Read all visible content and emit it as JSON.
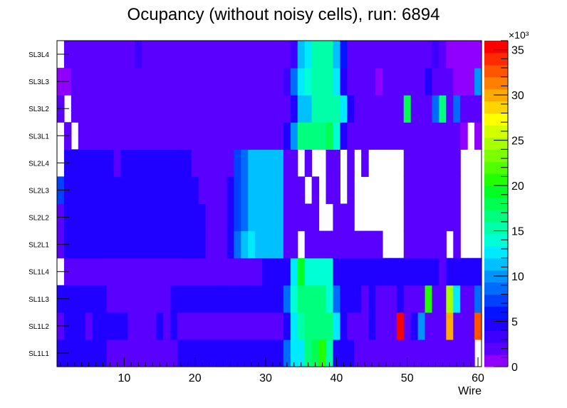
{
  "title": "Ocupancy (without noisy cells), run: 6894",
  "chart_data": {
    "type": "heatmap",
    "title": "Ocupancy (without noisy cells), run: 6894",
    "xlabel": "Wire",
    "ylabel": "",
    "xlim": [
      0.5,
      60.5
    ],
    "x_ticks": [
      10,
      20,
      30,
      40,
      50,
      60
    ],
    "y_categories": [
      "SL1L1",
      "SL1L2",
      "SL1L3",
      "SL1L4",
      "SL2L1",
      "SL2L2",
      "SL2L3",
      "SL2L4",
      "SL3L1",
      "SL3L2",
      "SL3L3",
      "SL3L4"
    ],
    "z_scale_label": "×10³",
    "z_range": [
      0,
      36
    ],
    "z_ticks": [
      0,
      5,
      10,
      15,
      20,
      25,
      30,
      35
    ],
    "grid": false,
    "cell_value_units": "thousands",
    "rows": {
      "SL3L4": [
        0,
        2,
        2,
        2,
        2,
        2,
        2,
        2,
        2,
        2,
        2,
        3,
        2,
        2,
        2,
        2,
        2,
        2,
        2,
        2,
        2,
        2,
        2,
        2,
        2,
        2,
        2,
        2,
        2,
        2,
        2,
        2,
        2,
        3,
        11,
        13,
        15,
        15,
        15,
        11,
        6,
        2,
        2,
        2,
        2,
        2,
        2,
        2,
        2,
        2,
        2,
        2,
        2,
        3,
        2,
        1,
        1,
        1,
        1,
        1
      ],
      "SL3L3": [
        1,
        1,
        2,
        2,
        2,
        2,
        2,
        2,
        2,
        2,
        2,
        2,
        2,
        2,
        2,
        2,
        2,
        2,
        2,
        2,
        2,
        2,
        2,
        2,
        2,
        2,
        2,
        2,
        2,
        2,
        2,
        2,
        3,
        8,
        12,
        14,
        15,
        15,
        15,
        12,
        5,
        2,
        2,
        2,
        2,
        1,
        2,
        2,
        2,
        2,
        2,
        2,
        4,
        2,
        2,
        2,
        1,
        1,
        1,
        10
      ],
      "SL3L2": [
        2,
        0,
        2,
        2,
        2,
        2,
        2,
        2,
        2,
        2,
        2,
        2,
        2,
        2,
        2,
        2,
        2,
        2,
        2,
        2,
        2,
        2,
        2,
        2,
        2,
        2,
        2,
        2,
        2,
        2,
        2,
        2,
        2,
        5,
        11,
        11,
        15,
        15,
        15,
        15,
        12,
        4,
        2,
        2,
        2,
        2,
        2,
        2,
        2,
        18,
        2,
        2,
        2,
        8,
        16,
        2,
        9,
        2,
        2,
        2
      ],
      "SL3L1": [
        0,
        2,
        0,
        2,
        2,
        2,
        2,
        2,
        2,
        2,
        2,
        2,
        2,
        2,
        2,
        2,
        2,
        2,
        2,
        2,
        2,
        2,
        2,
        2,
        2,
        2,
        2,
        2,
        2,
        2,
        2,
        2,
        4,
        10,
        16,
        16,
        16,
        17,
        18,
        14,
        4,
        2,
        2,
        2,
        2,
        2,
        2,
        2,
        2,
        2,
        2,
        2,
        2,
        2,
        2,
        2,
        2,
        1,
        0,
        1
      ],
      "SL2L4": [
        0,
        4,
        4,
        4,
        4,
        4,
        4,
        4,
        2,
        4,
        4,
        4,
        4,
        4,
        4,
        4,
        4,
        4,
        4,
        2,
        2,
        2,
        2,
        2,
        2,
        7,
        9,
        11,
        11,
        11,
        11,
        11,
        2,
        2,
        0,
        2,
        0,
        0,
        2,
        2,
        0,
        2,
        0,
        2,
        0,
        0,
        0,
        0,
        0,
        2,
        2,
        2,
        2,
        2,
        2,
        2,
        2,
        0,
        0,
        0
      ],
      "SL2L3": [
        7,
        4,
        4,
        4,
        4,
        4,
        4,
        4,
        4,
        4,
        4,
        4,
        4,
        4,
        4,
        4,
        4,
        4,
        4,
        4,
        2,
        2,
        2,
        2,
        4,
        7,
        9,
        11,
        11,
        11,
        11,
        11,
        2,
        2,
        2,
        0,
        2,
        0,
        2,
        2,
        0,
        2,
        0,
        0,
        0,
        0,
        0,
        0,
        0,
        2,
        2,
        2,
        2,
        2,
        2,
        2,
        2,
        0,
        0,
        0
      ],
      "SL2L2": [
        2,
        4,
        4,
        4,
        4,
        4,
        4,
        4,
        4,
        4,
        4,
        4,
        4,
        4,
        4,
        4,
        4,
        4,
        4,
        4,
        4,
        2,
        2,
        2,
        4,
        7,
        9,
        11,
        11,
        11,
        11,
        11,
        2,
        2,
        2,
        2,
        2,
        0,
        0,
        2,
        2,
        2,
        0,
        0,
        0,
        0,
        0,
        0,
        0,
        2,
        2,
        2,
        2,
        2,
        2,
        2,
        2,
        0,
        0,
        0
      ],
      "SL2L1": [
        2,
        4,
        4,
        4,
        4,
        4,
        4,
        4,
        4,
        4,
        4,
        4,
        4,
        4,
        4,
        4,
        4,
        4,
        4,
        4,
        4,
        2,
        2,
        2,
        4,
        9,
        11,
        13,
        11,
        11,
        11,
        11,
        2,
        2,
        0,
        2,
        2,
        2,
        2,
        2,
        2,
        2,
        2,
        2,
        2,
        2,
        0,
        0,
        0,
        2,
        2,
        2,
        2,
        2,
        2,
        0,
        2,
        0,
        0,
        0
      ],
      "SL1L4": [
        0,
        2,
        2,
        2,
        2,
        2,
        2,
        2,
        2,
        2,
        2,
        2,
        2,
        2,
        2,
        2,
        2,
        2,
        2,
        2,
        2,
        2,
        2,
        2,
        2,
        2,
        2,
        2,
        2,
        4,
        4,
        4,
        4,
        12,
        19,
        14,
        14,
        14,
        14,
        4,
        4,
        4,
        4,
        4,
        4,
        4,
        4,
        4,
        4,
        4,
        4,
        4,
        4,
        4,
        2,
        4,
        4,
        4,
        4,
        4
      ],
      "SL1L3": [
        4,
        4,
        4,
        5,
        5,
        5,
        5,
        2,
        2,
        2,
        2,
        2,
        2,
        2,
        2,
        2,
        4,
        4,
        4,
        4,
        4,
        4,
        4,
        4,
        4,
        4,
        4,
        4,
        4,
        4,
        4,
        4,
        9,
        14,
        17,
        17,
        16,
        16,
        14,
        9,
        4,
        4,
        4,
        2,
        4,
        2,
        2,
        2,
        4,
        2,
        2,
        2,
        20,
        2,
        2,
        25,
        12,
        2,
        2,
        9
      ],
      "SL1L2": [
        2,
        4,
        4,
        4,
        2,
        4,
        4,
        4,
        4,
        4,
        2,
        2,
        2,
        2,
        4,
        2,
        4,
        2,
        2,
        2,
        2,
        2,
        2,
        2,
        2,
        2,
        2,
        2,
        2,
        2,
        2,
        2,
        4,
        13,
        15,
        17,
        17,
        17,
        17,
        13,
        4,
        2,
        2,
        2,
        4,
        2,
        2,
        2,
        35,
        2,
        4,
        10,
        2,
        2,
        2,
        30,
        2,
        2,
        2,
        32
      ],
      "SL1L1": [
        4,
        4,
        4,
        4,
        4,
        4,
        4,
        2,
        2,
        2,
        2,
        2,
        2,
        2,
        2,
        2,
        2,
        4,
        4,
        4,
        4,
        4,
        4,
        4,
        4,
        4,
        4,
        4,
        4,
        4,
        4,
        4,
        9,
        13,
        13,
        16,
        18,
        20,
        15,
        4,
        4,
        4,
        2,
        2,
        2,
        2,
        2,
        2,
        2,
        2,
        2,
        2,
        2,
        2,
        2,
        2,
        2,
        2,
        2,
        0
      ]
    },
    "palette": [
      "#8f00ff",
      "#5a00ff",
      "#3d00ff",
      "#2000ff",
      "#0414ff",
      "#0040ff",
      "#006cff",
      "#0094ff",
      "#00c0ff",
      "#00eaff",
      "#00ffd4",
      "#00ffa8",
      "#00ff7c",
      "#00ff50",
      "#00ff22",
      "#22ff00",
      "#50ff00",
      "#7cff00",
      "#a8ff00",
      "#d4ff00",
      "#ffff00",
      "#ffd400",
      "#ffaa00",
      "#ff8000",
      "#ff5500",
      "#ff2a00",
      "#ff0000"
    ]
  }
}
